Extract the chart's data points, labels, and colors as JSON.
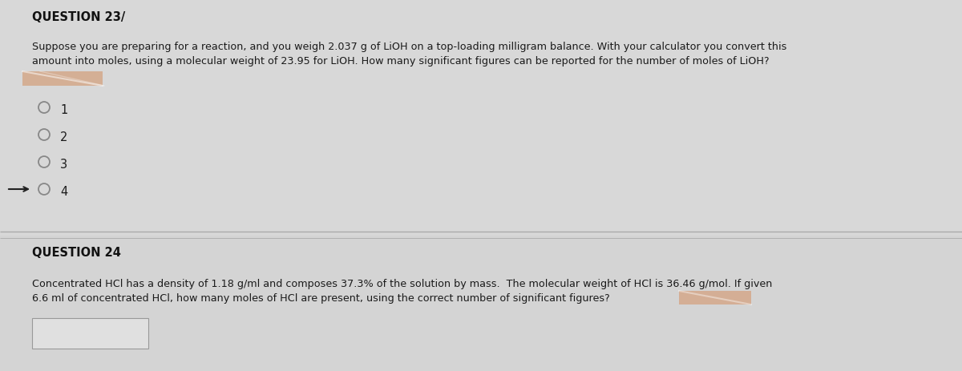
{
  "fig_bg": "#d0d0d0",
  "section1_bg": "#d8d8d8",
  "section2_bg": "#d4d4d4",
  "title1": "QUESTION 23/",
  "body1_line1": "Suppose you are preparing for a reaction, and you weigh 2.037 g of LiOH on a top-loading milligram balance. With your calculator you convert this",
  "body1_line2": "amount into moles, using a molecular weight of 23.95 for LiOH. How many significant figures can be reported for the number of moles of LiOH?",
  "options": [
    "1",
    "2",
    "3",
    "4"
  ],
  "title2": "QUESTION 24",
  "body2_line1": "Concentrated HCl has a density of 1.18 g/ml and composes 37.3% of the solution by mass.  The molecular weight of HCl is 36.46 g/mol. If given",
  "body2_line2": "6.6 ml of concentrated HCl, how many moles of HCl are present, using the correct number of significant figures?",
  "highlight_color": "#d4a88a",
  "text_color": "#1a1a1a",
  "title_color": "#111111",
  "font_size_title": 10.5,
  "font_size_body": 9.2,
  "font_size_options": 10.5,
  "divider_color": "#aaaaaa",
  "answer_box_color": "#e8e8e8",
  "circle_edge_color": "#888888"
}
